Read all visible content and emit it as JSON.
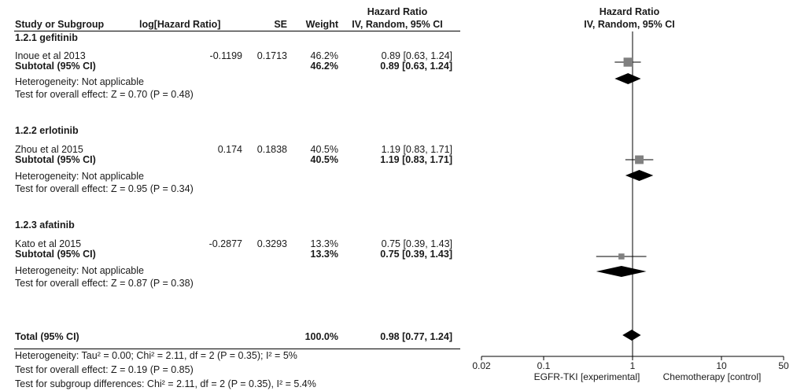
{
  "header": {
    "hr_group": "Hazard Ratio",
    "study": "Study or Subgroup",
    "loghr": "log[Hazard Ratio]",
    "se": "SE",
    "weight": "Weight",
    "hr_method": "IV, Random, 95% CI",
    "plot_title": "Hazard Ratio",
    "plot_method": "IV, Random, 95% CI"
  },
  "subgroups": [
    {
      "title": "1.2.1 gefitinib",
      "study": {
        "name": "Inoue et al 2013",
        "loghr": "-0.1199",
        "se": "0.1713",
        "weight": "46.2%",
        "ci": "0.89 [0.63, 1.24]"
      },
      "subtotal": {
        "label": "Subtotal (95% CI)",
        "weight": "46.2%",
        "ci": "0.89 [0.63, 1.24]"
      },
      "heterogeneity": "Heterogeneity: Not applicable",
      "overall": "Test for overall effect: Z = 0.70 (P = 0.48)"
    },
    {
      "title": "1.2.2 erlotinib",
      "study": {
        "name": "Zhou et al 2015",
        "loghr": "0.174",
        "se": "0.1838",
        "weight": "40.5%",
        "ci": "1.19 [0.83, 1.71]"
      },
      "subtotal": {
        "label": "Subtotal (95% CI)",
        "weight": "40.5%",
        "ci": "1.19 [0.83, 1.71]"
      },
      "heterogeneity": "Heterogeneity: Not applicable",
      "overall": "Test for overall effect: Z = 0.95 (P = 0.34)"
    },
    {
      "title": "1.2.3 afatinib",
      "study": {
        "name": "Kato et al 2015",
        "loghr": "-0.2877",
        "se": "0.3293",
        "weight": "13.3%",
        "ci": "0.75 [0.39, 1.43]"
      },
      "subtotal": {
        "label": "Subtotal (95% CI)",
        "weight": "13.3%",
        "ci": "0.75 [0.39, 1.43]"
      },
      "heterogeneity": "Heterogeneity: Not applicable",
      "overall": "Test for overall effect: Z = 0.87 (P = 0.38)"
    }
  ],
  "total": {
    "label": "Total (95% CI)",
    "weight": "100.0%",
    "ci": "0.98 [0.77, 1.24]",
    "heterogeneity": "Heterogeneity: Tau² = 0.00; Chi² = 2.11, df = 2 (P = 0.35); I² = 5%",
    "overall": "Test for overall effect: Z = 0.19 (P = 0.85)",
    "subgroup_diff": "Test for subgroup differences: Chi² = 2.11, df = 2 (P = 0.35), I² = 5.4%"
  },
  "chart_data": {
    "type": "forest",
    "x_scale": "log",
    "xlim": [
      0.02,
      50
    ],
    "x_ticks": [
      "0.02",
      "0.1",
      "1",
      "10",
      "50"
    ],
    "x_tick_values": [
      0.02,
      0.1,
      1,
      10,
      50
    ],
    "reference_line": 1,
    "left_label": "EGFR-TKI [experimental]",
    "right_label": "Chemotherapy [control]",
    "studies": [
      {
        "name": "Inoue et al 2013",
        "hr": 0.89,
        "lower": 0.63,
        "upper": 1.24,
        "weight": 46.2
      },
      {
        "name": "Zhou et al 2015",
        "hr": 1.19,
        "lower": 0.83,
        "upper": 1.71,
        "weight": 40.5
      },
      {
        "name": "Kato et al 2015",
        "hr": 0.75,
        "lower": 0.39,
        "upper": 1.43,
        "weight": 13.3
      }
    ],
    "subtotals": [
      {
        "name": "Subtotal gefitinib",
        "hr": 0.89,
        "lower": 0.63,
        "upper": 1.24
      },
      {
        "name": "Subtotal erlotinib",
        "hr": 1.19,
        "lower": 0.83,
        "upper": 1.71
      },
      {
        "name": "Subtotal afatinib",
        "hr": 0.75,
        "lower": 0.39,
        "upper": 1.43
      }
    ],
    "total": {
      "name": "Total",
      "hr": 0.98,
      "lower": 0.77,
      "upper": 1.24
    },
    "colors": {
      "square": "#808080",
      "diamond": "#000000",
      "line": "#000000"
    }
  }
}
